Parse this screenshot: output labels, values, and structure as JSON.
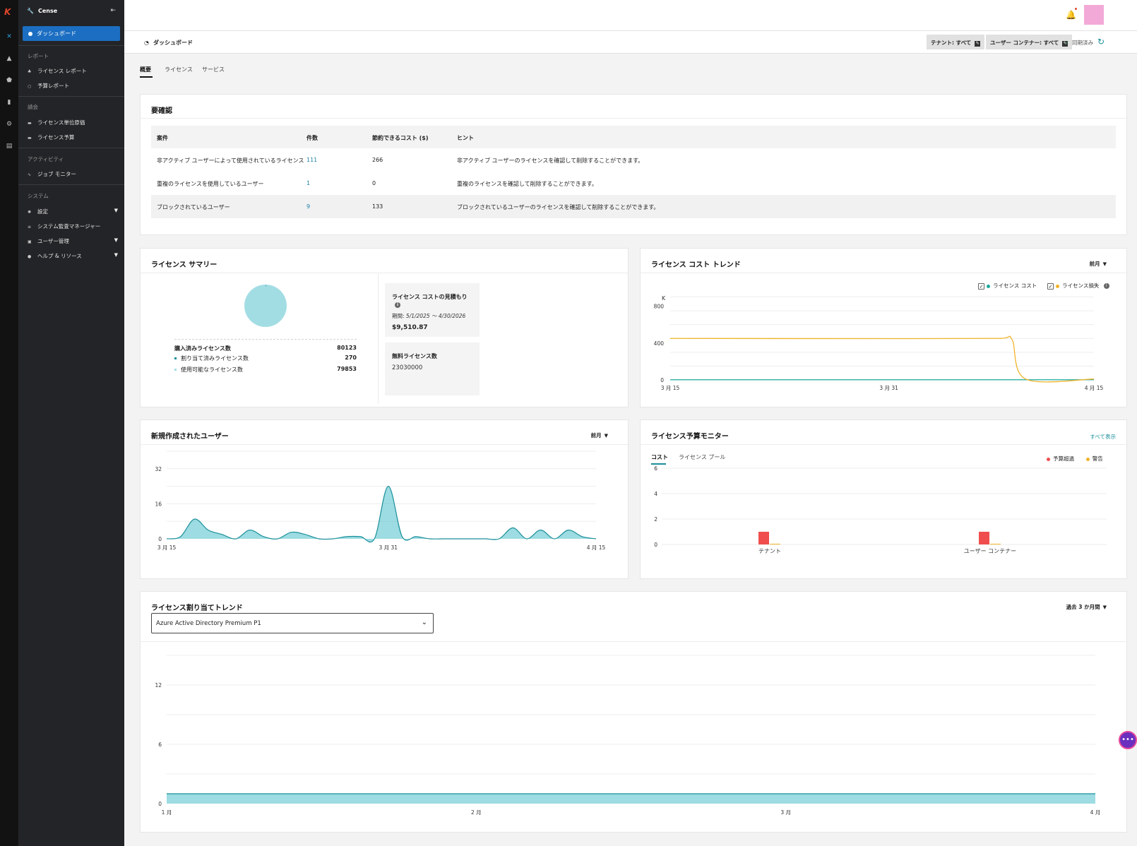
{
  "app": {
    "name": "Cense",
    "logo": "K"
  },
  "rail": {
    "icons": [
      "tools-icon",
      "alert-icon",
      "shield-icon",
      "document-icon",
      "settings-icon",
      "file-icon"
    ]
  },
  "sidebar": {
    "active": "ダッシュボード",
    "sections": [
      {
        "label": "レポート",
        "items": [
          "ライセンス レポート",
          "予算レポート"
        ]
      },
      {
        "label": "請会",
        "items": [
          "ライセンス単位原価",
          "ライセンス予算"
        ]
      },
      {
        "label": "アクティビティ",
        "items": [
          "ジョブ モニター"
        ]
      },
      {
        "label": "システム",
        "items": [
          "設定",
          "システム監査マネージャー",
          "ユーザー管理",
          "ヘルプ & リソース"
        ]
      }
    ]
  },
  "header": {
    "title": "ダッシュボード",
    "tenant_filter": "テナント: すべて",
    "container_filter": "ユーザー コンテナー: すべて",
    "sync_status": "同期済み"
  },
  "tabs": [
    "概要",
    "ライセンス",
    "サービス"
  ],
  "review": {
    "title": "要確認",
    "columns": [
      "案件",
      "件数",
      "節約できるコスト ($)",
      "ヒント"
    ],
    "rows": [
      [
        "非アクティブ ユーザーによって使用されているライセンス",
        "111",
        "266",
        "非アクティブ ユーザーのライセンスを確認して削除することができます。"
      ],
      [
        "重複のライセンスを使用しているユーザー",
        "1",
        "0",
        "重複のライセンスを確認して削除することができます。"
      ],
      [
        "ブロックされているユーザー",
        "9",
        "133",
        "ブロックされているユーザーのライセンスを確認して削除することができます。"
      ]
    ]
  },
  "license_summary": {
    "title": "ライセンス サマリー",
    "purchased_label": "購入済みライセンス数",
    "purchased_value": "80123",
    "assigned_label": "割り当て済みライセンス数",
    "assigned_value": "270",
    "available_label": "使用可能なライセンス数",
    "available_value": "79853",
    "estimate_title": "ライセンス コストの見積もり",
    "period_label": "期間:",
    "period_value": "5/1/2025 ～ 4/30/2026",
    "estimate_amount": "$9,510.87",
    "free_title": "無料ライセンス数",
    "free_value": "23030000",
    "colors": {
      "assigned": "#1a8f9a",
      "available": "#a3dde4"
    }
  },
  "cost_trend": {
    "title": "ライセンス コスト トレンド",
    "period": "前月",
    "legend_cost": "ライセンス コスト",
    "legend_loss": "ライセンス損失",
    "unit": "K",
    "colors": {
      "cost": "#1aa89a",
      "loss": "#f0b429"
    },
    "chart_data": {
      "type": "line",
      "x_ticks": [
        "3 月 15",
        "3 月 31",
        "4 月 15"
      ],
      "yticks": [
        0,
        400,
        800
      ],
      "ylim": [
        0,
        950
      ],
      "series": [
        {
          "name": "ライセンス コスト",
          "values": [
            [
              0,
              2
            ],
            [
              31,
              2
            ]
          ]
        },
        {
          "name": "ライセンス損失",
          "values": [
            [
              0,
              450
            ],
            [
              18,
              448
            ],
            [
              24,
              450
            ],
            [
              25,
              440
            ],
            [
              26,
              10
            ],
            [
              31,
              10
            ]
          ]
        }
      ]
    }
  },
  "new_users": {
    "title": "新規作成されたユーザー",
    "period": "前月",
    "color": "#5bc4cf",
    "chart_data": {
      "type": "area",
      "x_ticks": [
        "3 月 15",
        "3 月 31",
        "4 月 15"
      ],
      "yticks": [
        0,
        16,
        32
      ],
      "ylim": [
        0,
        40
      ],
      "values": [
        [
          0,
          0
        ],
        [
          1,
          1
        ],
        [
          2,
          9
        ],
        [
          3,
          4
        ],
        [
          4,
          2
        ],
        [
          5,
          0
        ],
        [
          6,
          4
        ],
        [
          7,
          1
        ],
        [
          8,
          0
        ],
        [
          9,
          3
        ],
        [
          10,
          2
        ],
        [
          11,
          0
        ],
        [
          12,
          0
        ],
        [
          13,
          1
        ],
        [
          14,
          1
        ],
        [
          15,
          0
        ],
        [
          16,
          24
        ],
        [
          17,
          1
        ],
        [
          18,
          1
        ],
        [
          19,
          0
        ],
        [
          20,
          0
        ],
        [
          21,
          0
        ],
        [
          22,
          0
        ],
        [
          23,
          0
        ],
        [
          24,
          0
        ],
        [
          25,
          5
        ],
        [
          26,
          0
        ],
        [
          27,
          4
        ],
        [
          28,
          0
        ],
        [
          29,
          4
        ],
        [
          30,
          1
        ],
        [
          31,
          0
        ]
      ]
    }
  },
  "budget_monitor": {
    "title": "ライセンス予算モニター",
    "view_all": "すべて表示",
    "tabs": [
      "コスト",
      "ライセンス プール"
    ],
    "legend_over": "予算超過",
    "legend_warn": "警告",
    "colors": {
      "over": "#f04e4e",
      "warn": "#f0b429"
    },
    "chart_data": {
      "type": "bar",
      "categories": [
        "テナント",
        "ユーザー コンテナー"
      ],
      "series": [
        {
          "name": "予算超過",
          "values": [
            1,
            1
          ]
        },
        {
          "name": "警告",
          "values": [
            0,
            0
          ]
        }
      ],
      "yticks": [
        0,
        2,
        4,
        6
      ],
      "ylim": [
        0,
        6
      ]
    }
  },
  "allocation_trend": {
    "title": "ライセンス割り当てトレンド",
    "period": "過去 3 か月間",
    "selected_license": "Azure Active Directory Premium P1",
    "color": "#5bc4cf",
    "chart_data": {
      "type": "area",
      "x_ticks": [
        "1 月",
        "2 月",
        "3 月",
        "4 月"
      ],
      "yticks": [
        0,
        6,
        12
      ],
      "ylim": [
        0,
        15
      ],
      "values": [
        [
          0,
          1
        ],
        [
          3,
          1
        ]
      ]
    }
  }
}
